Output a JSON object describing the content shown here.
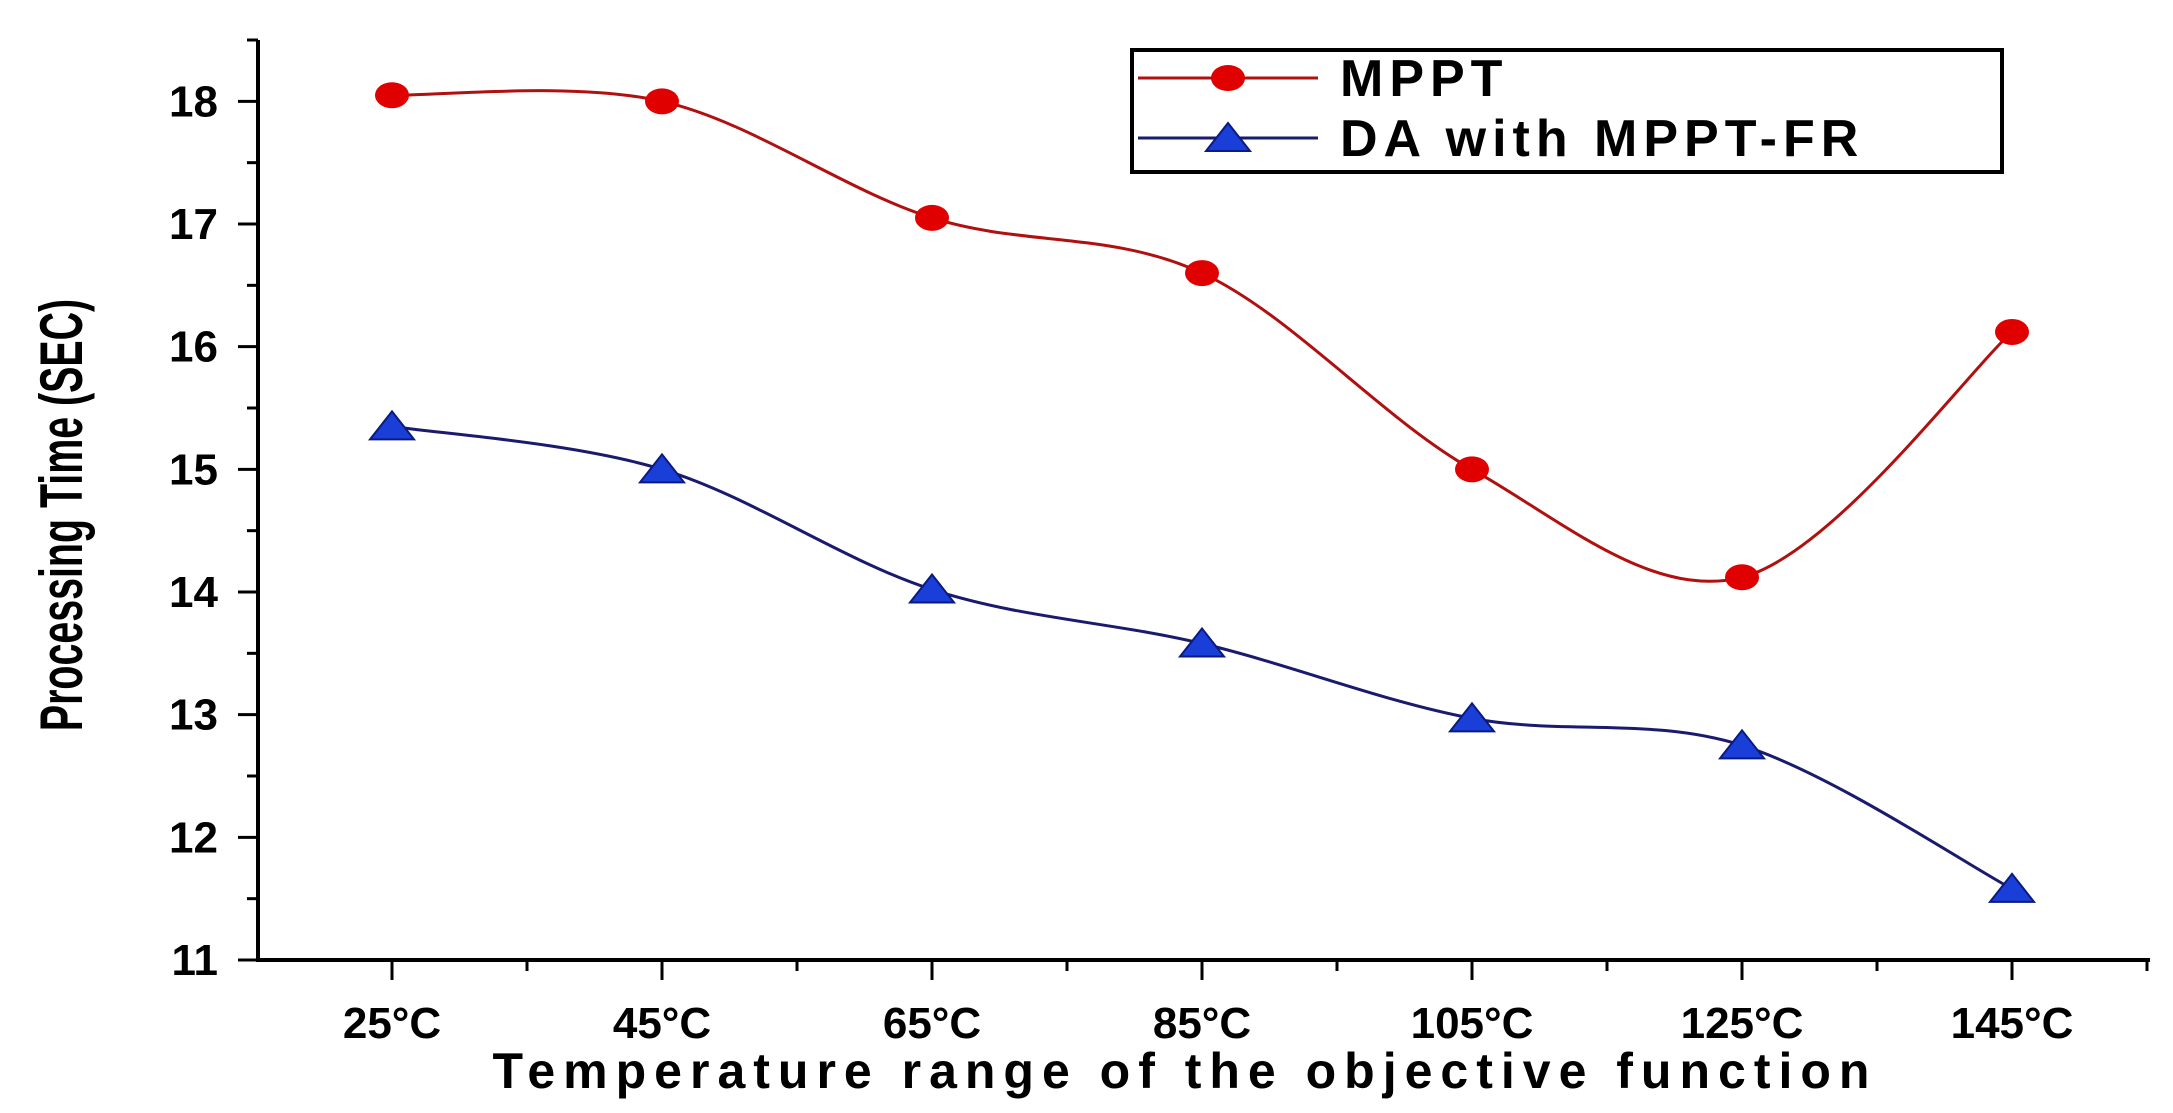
{
  "chart_data": {
    "type": "line",
    "title": "",
    "xlabel": "Temperature range of the objective function",
    "ylabel": "Processing Time (SEC)",
    "categories": [
      "25°C",
      "45°C",
      "65°C",
      "85°C",
      "105°C",
      "125°C",
      "145°C"
    ],
    "ylim": [
      11,
      18.5
    ],
    "yticks": [
      11,
      12,
      13,
      14,
      15,
      16,
      17,
      18
    ],
    "grid": false,
    "legend_position": "top-right",
    "series": [
      {
        "name": "MPPT",
        "color": "#e00000",
        "line_color": "#b01010",
        "marker": "circle",
        "values": [
          18.05,
          18.0,
          17.05,
          16.6,
          15.0,
          14.12,
          16.12
        ]
      },
      {
        "name": "DA with MPPT-FR",
        "color": "#1a3fd8",
        "line_color": "#1a1a6e",
        "marker": "triangle",
        "values": [
          15.35,
          15.0,
          14.02,
          13.58,
          12.97,
          12.75,
          11.58
        ]
      }
    ]
  }
}
